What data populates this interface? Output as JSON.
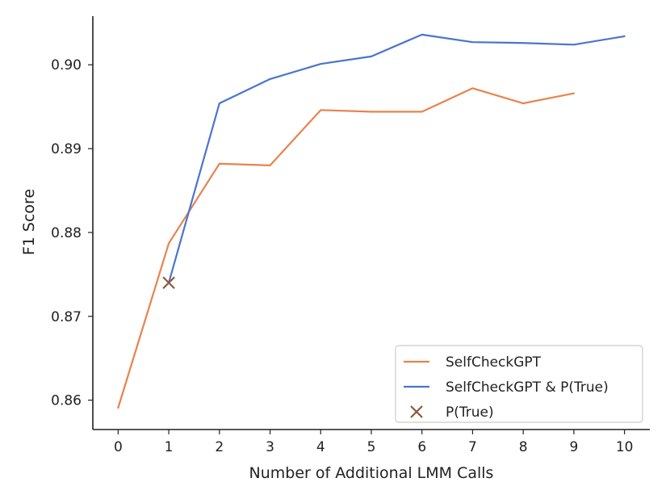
{
  "chart_data": {
    "type": "line",
    "title": "",
    "xlabel": "Number of Additional LMM Calls",
    "ylabel": "F1 Score",
    "xlim": [
      -0.5,
      10.5
    ],
    "ylim": [
      0.8565,
      0.9058
    ],
    "xticks": [
      0,
      1,
      2,
      3,
      4,
      5,
      6,
      7,
      8,
      9,
      10
    ],
    "yticks": [
      0.86,
      0.87,
      0.88,
      0.89,
      0.9
    ],
    "ytick_labels": [
      "0.86",
      "0.87",
      "0.88",
      "0.89",
      "0.90"
    ],
    "grid": false,
    "legend_position": "bottom-right",
    "series": [
      {
        "name": "SelfCheckGPT",
        "color": "#e8834e",
        "marker": "none",
        "x": [
          0,
          1,
          2,
          3,
          4,
          5,
          6,
          7,
          8,
          9
        ],
        "y": [
          0.8591,
          0.8787,
          0.8882,
          0.888,
          0.8946,
          0.8944,
          0.8944,
          0.8972,
          0.8954,
          0.8966
        ]
      },
      {
        "name": "SelfCheckGPT & P(True)",
        "color": "#4a74cf",
        "marker": "none",
        "x": [
          1,
          2,
          3,
          4,
          5,
          6,
          7,
          8,
          9,
          10
        ],
        "y": [
          0.874,
          0.8954,
          0.8983,
          0.9001,
          0.901,
          0.9036,
          0.9027,
          0.9026,
          0.9024,
          0.9034
        ]
      },
      {
        "name": "P(True)",
        "color": "#8b5a3c",
        "marker": "x",
        "linestyle": "none",
        "x": [
          1
        ],
        "y": [
          0.874
        ]
      }
    ]
  }
}
